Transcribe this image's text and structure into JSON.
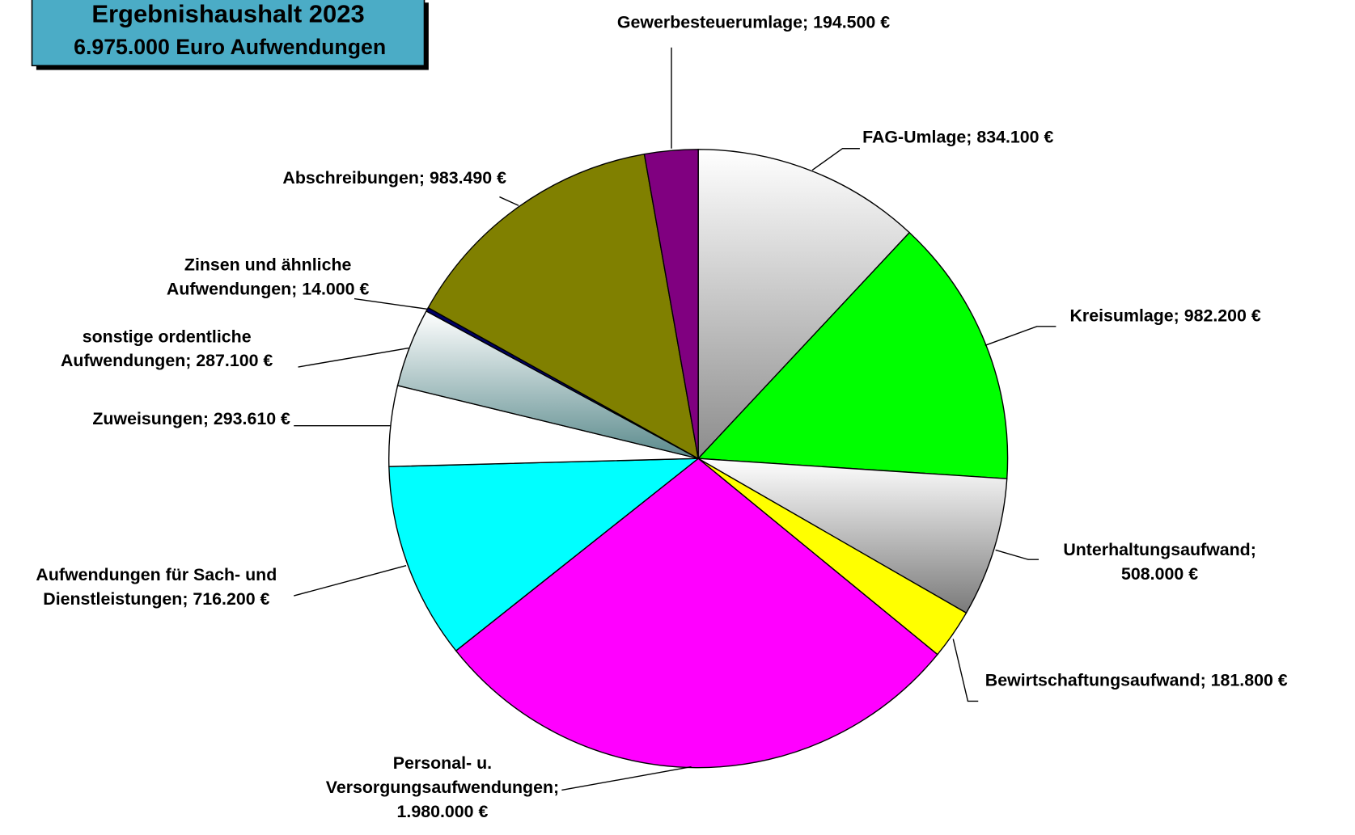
{
  "chart_data": {
    "type": "pie",
    "title": "Ergebnishaushalt 2023",
    "subtitle": "6.975.000 Euro Aufwendungen",
    "labels": [
      [
        "FAG-Umlage; 834.100 €"
      ],
      [
        "Kreisumlage; 982.200 €"
      ],
      [
        "Unterhaltungsaufwand;",
        "508.000 €"
      ],
      [
        "Bewirtschaftungsaufwand; 181.800 €"
      ],
      [
        "Personal- u.",
        "Versorgungsaufwendungen;",
        "1.980.000 €"
      ],
      [
        "Aufwendungen für Sach- und",
        "Dienstleistungen; 716.200 €"
      ],
      [
        "Zuweisungen; 293.610 €"
      ],
      [
        "sonstige ordentliche",
        "Aufwendungen; 287.100 €"
      ],
      [
        "Zinsen und ähnliche",
        "Aufwendungen; 14.000 €"
      ],
      [
        "Abschreibungen; 983.490 €"
      ],
      [
        "Gewerbesteuerumlage; 194.500 €"
      ]
    ],
    "values": [
      834100,
      982200,
      508000,
      181800,
      1980000,
      716200,
      293610,
      287100,
      14000,
      983490,
      194500
    ],
    "colors": [
      "#8c8c8c",
      "#00ff00",
      "#7a7a7a",
      "#ffff00",
      "#ff00ff",
      "#00ffff",
      "#ffffff",
      "#5a8a8c",
      "#000066",
      "#808000",
      "#800080"
    ],
    "gradient": [
      true,
      false,
      true,
      false,
      false,
      false,
      false,
      true,
      false,
      false,
      false
    ]
  }
}
